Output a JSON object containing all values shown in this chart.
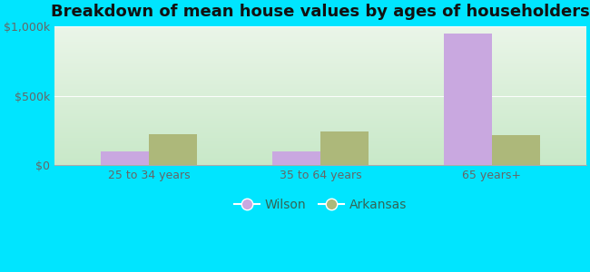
{
  "title": "Breakdown of mean house values by ages of householders",
  "categories": [
    "25 to 34 years",
    "35 to 64 years",
    "65 years+"
  ],
  "wilson_values": [
    100000,
    98000,
    950000
  ],
  "arkansas_values": [
    220000,
    240000,
    215000
  ],
  "wilson_color": "#c9a8e0",
  "arkansas_color": "#adb87a",
  "background_outer": "#00e5ff",
  "background_inner_top": "#eaf5e8",
  "background_inner_bottom": "#c8e8c8",
  "ylim": [
    0,
    1000000
  ],
  "yticks": [
    0,
    500000,
    1000000
  ],
  "ytick_labels": [
    "$0",
    "$500k",
    "$1,000k"
  ],
  "legend_labels": [
    "Wilson",
    "Arkansas"
  ],
  "bar_width": 0.28,
  "title_fontsize": 13,
  "tick_fontsize": 9,
  "legend_fontsize": 10,
  "tick_color": "#666666",
  "title_color": "#111111",
  "legend_text_color": "#336655"
}
